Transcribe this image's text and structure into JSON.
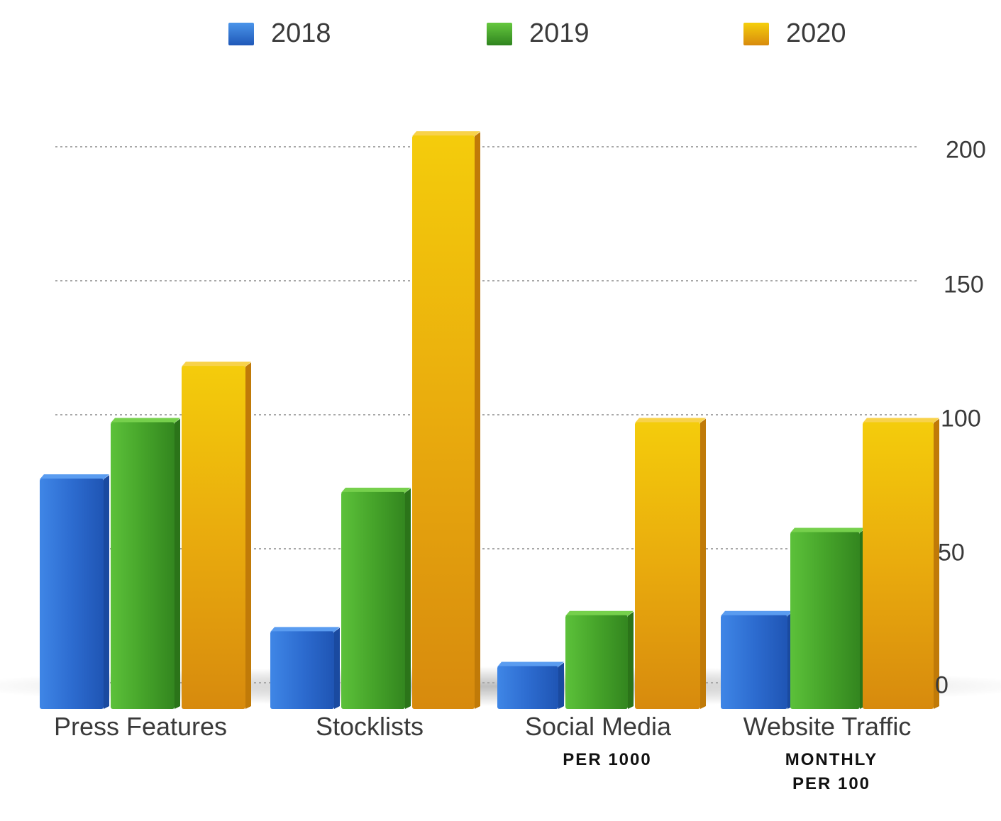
{
  "chart_data": {
    "type": "bar",
    "categories": [
      "Press Features",
      "Stocklists",
      "Social Media",
      "Website Traffic"
    ],
    "category_sublabels": [
      [],
      [],
      [
        "PER 1000"
      ],
      [
        "MONTHLY",
        "PER 100"
      ]
    ],
    "series": [
      {
        "name": "2018",
        "values": [
          77,
          20,
          7,
          26
        ],
        "color": "#2f6fcf"
      },
      {
        "name": "2019",
        "values": [
          98,
          72,
          26,
          57
        ],
        "color": "#45a22a"
      },
      {
        "name": "2020",
        "values": [
          119,
          205,
          98,
          98
        ],
        "color": "#e7a60d"
      }
    ],
    "yticks": [
      0,
      50,
      100,
      150,
      200
    ],
    "ylim": [
      0,
      210
    ],
    "y_axis_side": "right",
    "grid": true,
    "legend_position": "top"
  }
}
